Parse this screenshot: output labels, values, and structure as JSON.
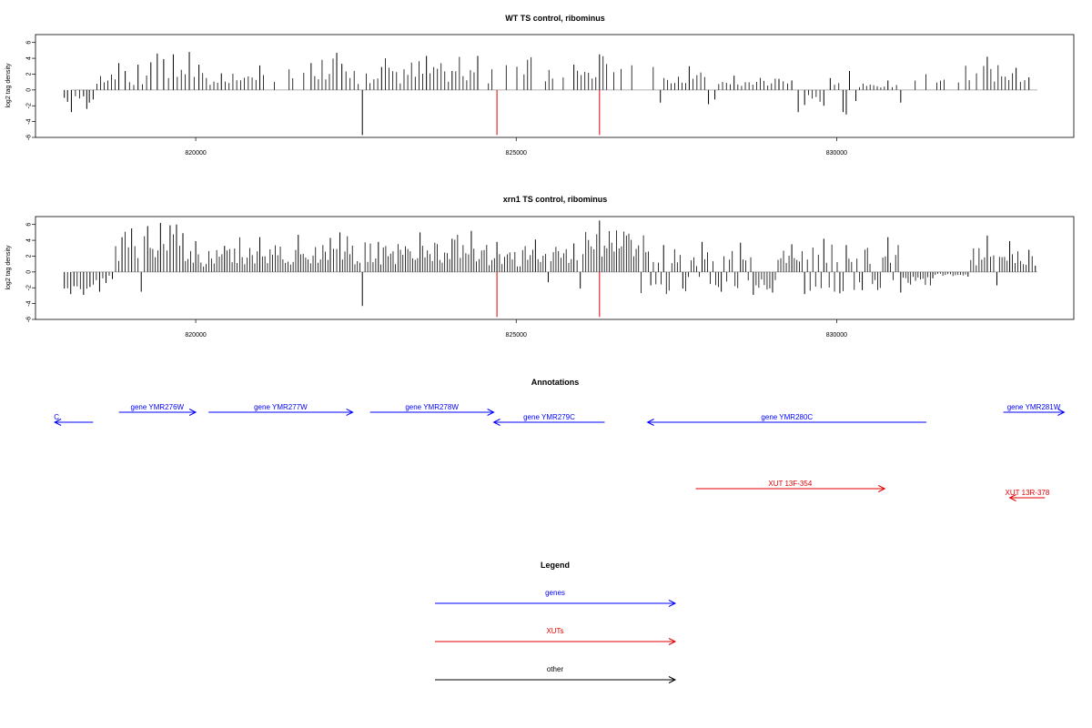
{
  "chart_data": [
    {
      "type": "bar",
      "title": "WT TS control, ribominus",
      "ylabel": "log2 tag density",
      "xlim": [
        817500,
        833700
      ],
      "ylim": [
        -6,
        7
      ],
      "yticks": [
        "6",
        "4",
        "2",
        "0",
        "-2",
        "-4",
        "-6"
      ],
      "xticks": [
        "820000",
        "825000",
        "830000"
      ],
      "colors": {
        "normal": "#000000",
        "highlight": "#e00000",
        "baseline": "#999999"
      },
      "highlights": [
        {
          "x": 824700,
          "y": -5.7
        },
        {
          "x": 826300,
          "y": -5.7
        }
      ],
      "series": [
        {
          "values": [
            [
              817950,
              -1
            ],
            [
              818000,
              -1.5
            ],
            [
              818060,
              -2.8
            ],
            [
              818250,
              -0.8
            ],
            [
              818300,
              -2.4
            ],
            [
              818340,
              -1.6
            ],
            [
              818400,
              -1.2
            ],
            [
              818800,
              3.4
            ],
            [
              818900,
              2.4
            ],
            [
              819100,
              3.2
            ],
            [
              819300,
              3.5
            ],
            [
              819400,
              4.6
            ],
            [
              819500,
              3.9
            ],
            [
              819650,
              4.5
            ],
            [
              819900,
              4.8
            ],
            [
              820050,
              3.2
            ],
            [
              820400,
              2.1
            ],
            [
              821000,
              3.1
            ],
            [
              821800,
              3.4
            ],
            [
              822200,
              4.7
            ],
            [
              822280,
              3.3
            ],
            [
              822600,
              -5.7
            ],
            [
              822900,
              2.9
            ],
            [
              823600,
              4.3
            ],
            [
              824000,
              2.4
            ],
            [
              824400,
              4.3
            ],
            [
              825900,
              3.2
            ],
            [
              826300,
              4.5
            ],
            [
              827250,
              -1.6
            ],
            [
              827700,
              3.0
            ],
            [
              828000,
              -1.8
            ],
            [
              828100,
              -1.2
            ],
            [
              828400,
              1.8
            ],
            [
              829100,
              1.4
            ],
            [
              829300,
              1.2
            ],
            [
              829400,
              -2.8
            ],
            [
              829500,
              -1.9
            ],
            [
              829800,
              -2.0
            ],
            [
              829900,
              1.5
            ],
            [
              830100,
              -2.8
            ],
            [
              830150,
              -3.1
            ],
            [
              830200,
              2.4
            ],
            [
              830300,
              -1.4
            ],
            [
              830800,
              1.2
            ],
            [
              831000,
              -1.6
            ],
            [
              832350,
              4.2
            ],
            [
              832800,
              2.8
            ],
            [
              833000,
              1.6
            ]
          ]
        }
      ]
    },
    {
      "type": "bar",
      "title": "xrn1 TS control, ribominus",
      "ylabel": "log2 tag density",
      "xlim": [
        817500,
        833700
      ],
      "ylim": [
        -6,
        7
      ],
      "yticks": [
        "6",
        "4",
        "2",
        "0",
        "-2",
        "-4",
        "-6"
      ],
      "xticks": [
        "820000",
        "825000",
        "830000"
      ],
      "colors": {
        "normal": "#000000",
        "highlight": "#e00000",
        "baseline": "#999999"
      },
      "highlights": [
        {
          "x": 824700,
          "y": -5.7
        },
        {
          "x": 826300,
          "y": -5.7
        }
      ],
      "series": [
        {
          "values": [
            [
              817950,
              -2.1
            ],
            [
              818050,
              -2.8
            ],
            [
              818100,
              -1.8
            ],
            [
              818250,
              -2.9
            ],
            [
              818350,
              -1.9
            ],
            [
              818500,
              -2.5
            ],
            [
              818600,
              -1.4
            ],
            [
              818700,
              -0.9
            ],
            [
              818850,
              4.4
            ],
            [
              819000,
              5.5
            ],
            [
              819150,
              -2.5
            ],
            [
              819250,
              5.8
            ],
            [
              819450,
              6.2
            ],
            [
              819600,
              5.9
            ],
            [
              819700,
              6.0
            ],
            [
              819800,
              4.9
            ],
            [
              820000,
              3.9
            ],
            [
              820450,
              3.3
            ],
            [
              821000,
              4.4
            ],
            [
              821600,
              4.7
            ],
            [
              822100,
              4.3
            ],
            [
              822250,
              5.0
            ],
            [
              822600,
              -4.3
            ],
            [
              822850,
              3.8
            ],
            [
              823500,
              5.0
            ],
            [
              824000,
              4.2
            ],
            [
              824300,
              5.2
            ],
            [
              824700,
              3.8
            ],
            [
              825300,
              4.1
            ],
            [
              825500,
              -1.3
            ],
            [
              825900,
              3.6
            ],
            [
              826000,
              -2.1
            ],
            [
              826300,
              6.5
            ],
            [
              827100,
              -1.7
            ],
            [
              827300,
              3.4
            ],
            [
              827600,
              -2.1
            ],
            [
              827900,
              3.8
            ],
            [
              828200,
              -2.5
            ],
            [
              828500,
              3.7
            ],
            [
              828700,
              -2.9
            ],
            [
              829000,
              -2.6
            ],
            [
              829300,
              3.5
            ],
            [
              829500,
              -2.8
            ],
            [
              829800,
              4.2
            ],
            [
              830050,
              -2.7
            ],
            [
              830150,
              3.4
            ],
            [
              830400,
              -2.3
            ],
            [
              830800,
              4.4
            ],
            [
              831000,
              -2.6
            ],
            [
              831500,
              -0.8
            ],
            [
              832050,
              -0.6
            ],
            [
              832350,
              4.6
            ],
            [
              832500,
              -1.7
            ],
            [
              832700,
              3.9
            ],
            [
              833000,
              2.8
            ],
            [
              833100,
              0.8
            ]
          ]
        }
      ]
    }
  ],
  "annotations": {
    "title": "Annotations",
    "items": [
      {
        "label": "C",
        "color": "#0000ff",
        "row": 1,
        "start": 817800,
        "end": 818400,
        "dir": "left"
      },
      {
        "label": "gene YMR276W",
        "color": "#0000ff",
        "row": 0,
        "start": 818800,
        "end": 820000,
        "dir": "right"
      },
      {
        "label": "gene YMR277W",
        "color": "#0000ff",
        "row": 0,
        "start": 820200,
        "end": 822450,
        "dir": "right"
      },
      {
        "label": "gene YMR278W",
        "color": "#0000ff",
        "row": 0,
        "start": 822720,
        "end": 824650,
        "dir": "right"
      },
      {
        "label": "gene YMR279C",
        "color": "#0000ff",
        "row": 1,
        "start": 824650,
        "end": 826380,
        "dir": "left"
      },
      {
        "label": "gene YMR280C",
        "color": "#0000ff",
        "row": 1,
        "start": 827050,
        "end": 831400,
        "dir": "left"
      },
      {
        "label": "gene YMR281W",
        "color": "#0000ff",
        "row": 0,
        "start": 832600,
        "end": 833550,
        "dir": "right"
      },
      {
        "label": "XUT 13F-354",
        "color": "#e00000",
        "row": 2,
        "start": 827800,
        "end": 830750,
        "dir": "right"
      },
      {
        "label": "XUT 13R-378",
        "color": "#e00000",
        "row": 3,
        "start": 832700,
        "end": 833250,
        "dir": "left"
      }
    ]
  },
  "legend": {
    "title": "Legend",
    "items": [
      {
        "label": "genes",
        "color": "#0000ff"
      },
      {
        "label": "XUTs",
        "color": "#e00000"
      },
      {
        "label": "other",
        "color": "#000000"
      }
    ]
  }
}
